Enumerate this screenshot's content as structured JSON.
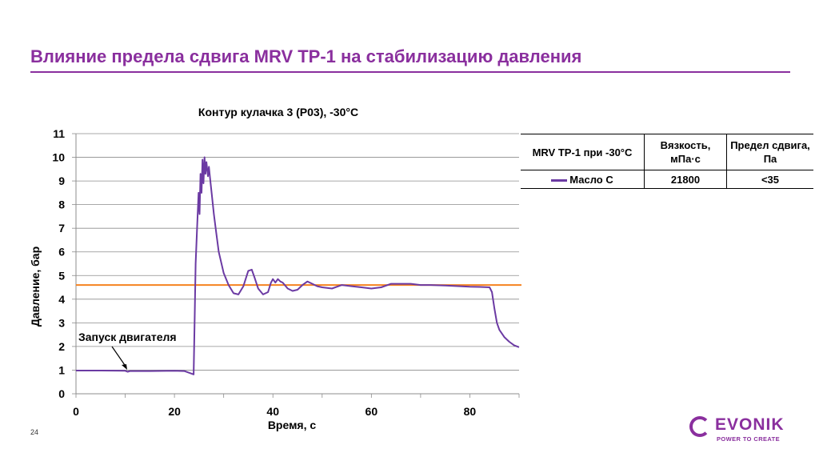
{
  "slide": {
    "title": "Влияние предела сдвига MRV TP-1 на стабилизацию давления",
    "page_number": "24"
  },
  "table": {
    "headers": [
      "MRV TP-1 при -30°C",
      "Вязкость, мПа·с",
      "Предел сдвига, Па"
    ],
    "row": {
      "label": "Масло C",
      "viscosity": "21800",
      "yield_stress": "<35"
    }
  },
  "logo": {
    "name": "EVONIK",
    "tagline": "POWER TO CREATE"
  },
  "colors": {
    "accent": "#8a2f9e",
    "series": "#6b3aa3",
    "reference": "#f58220"
  },
  "chart_data": {
    "type": "line",
    "title": "Контур кулачка 3 (P03), -30°C",
    "xlabel": "Время, с",
    "ylabel": "Давление, бар",
    "xlim": [
      0,
      90
    ],
    "ylim": [
      0,
      11
    ],
    "xticks": [
      0,
      20,
      40,
      60,
      80
    ],
    "yticks": [
      0,
      1,
      2,
      3,
      4,
      5,
      6,
      7,
      8,
      9,
      10,
      11
    ],
    "grid": "horizontal",
    "annotation": {
      "text": "Запуск двигателя",
      "x": 10.5,
      "y": 0.95
    },
    "reference_line": {
      "y": 4.6
    },
    "series": [
      {
        "name": "Масло C",
        "x": [
          0,
          5,
          10,
          10.5,
          11,
          15,
          20,
          22,
          23.5,
          23.9,
          24.1,
          24.3,
          24.6,
          24.9,
          25.1,
          25.3,
          25.5,
          25.7,
          25.9,
          26.1,
          26.3,
          26.5,
          26.8,
          27.0,
          27.3,
          27.6,
          28,
          28.5,
          29,
          30,
          31,
          32,
          33,
          34,
          35,
          35.7,
          36.3,
          37,
          38,
          39,
          39.6,
          40,
          40.5,
          41,
          41.5,
          42,
          43,
          44,
          45,
          46,
          47,
          48,
          49,
          50,
          52,
          54,
          56,
          58,
          60,
          62,
          64,
          66,
          68,
          70,
          72,
          75,
          78,
          80,
          82,
          84,
          84.5,
          85,
          85.5,
          86,
          87,
          88,
          89,
          90
        ],
        "values": [
          0.98,
          0.98,
          0.97,
          0.93,
          0.96,
          0.96,
          0.97,
          0.96,
          0.85,
          0.82,
          3.0,
          5.5,
          7.0,
          8.5,
          7.6,
          9.3,
          8.5,
          9.9,
          8.9,
          10.0,
          9.3,
          9.8,
          9.2,
          9.6,
          9.0,
          8.4,
          7.6,
          6.8,
          6.0,
          5.1,
          4.6,
          4.25,
          4.2,
          4.55,
          5.2,
          5.25,
          4.9,
          4.45,
          4.2,
          4.3,
          4.7,
          4.85,
          4.7,
          4.85,
          4.75,
          4.7,
          4.45,
          4.35,
          4.4,
          4.6,
          4.75,
          4.65,
          4.55,
          4.5,
          4.45,
          4.6,
          4.55,
          4.5,
          4.45,
          4.5,
          4.65,
          4.65,
          4.65,
          4.6,
          4.6,
          4.58,
          4.55,
          4.53,
          4.52,
          4.5,
          4.3,
          3.6,
          3.0,
          2.7,
          2.4,
          2.2,
          2.05,
          1.97
        ]
      }
    ]
  }
}
